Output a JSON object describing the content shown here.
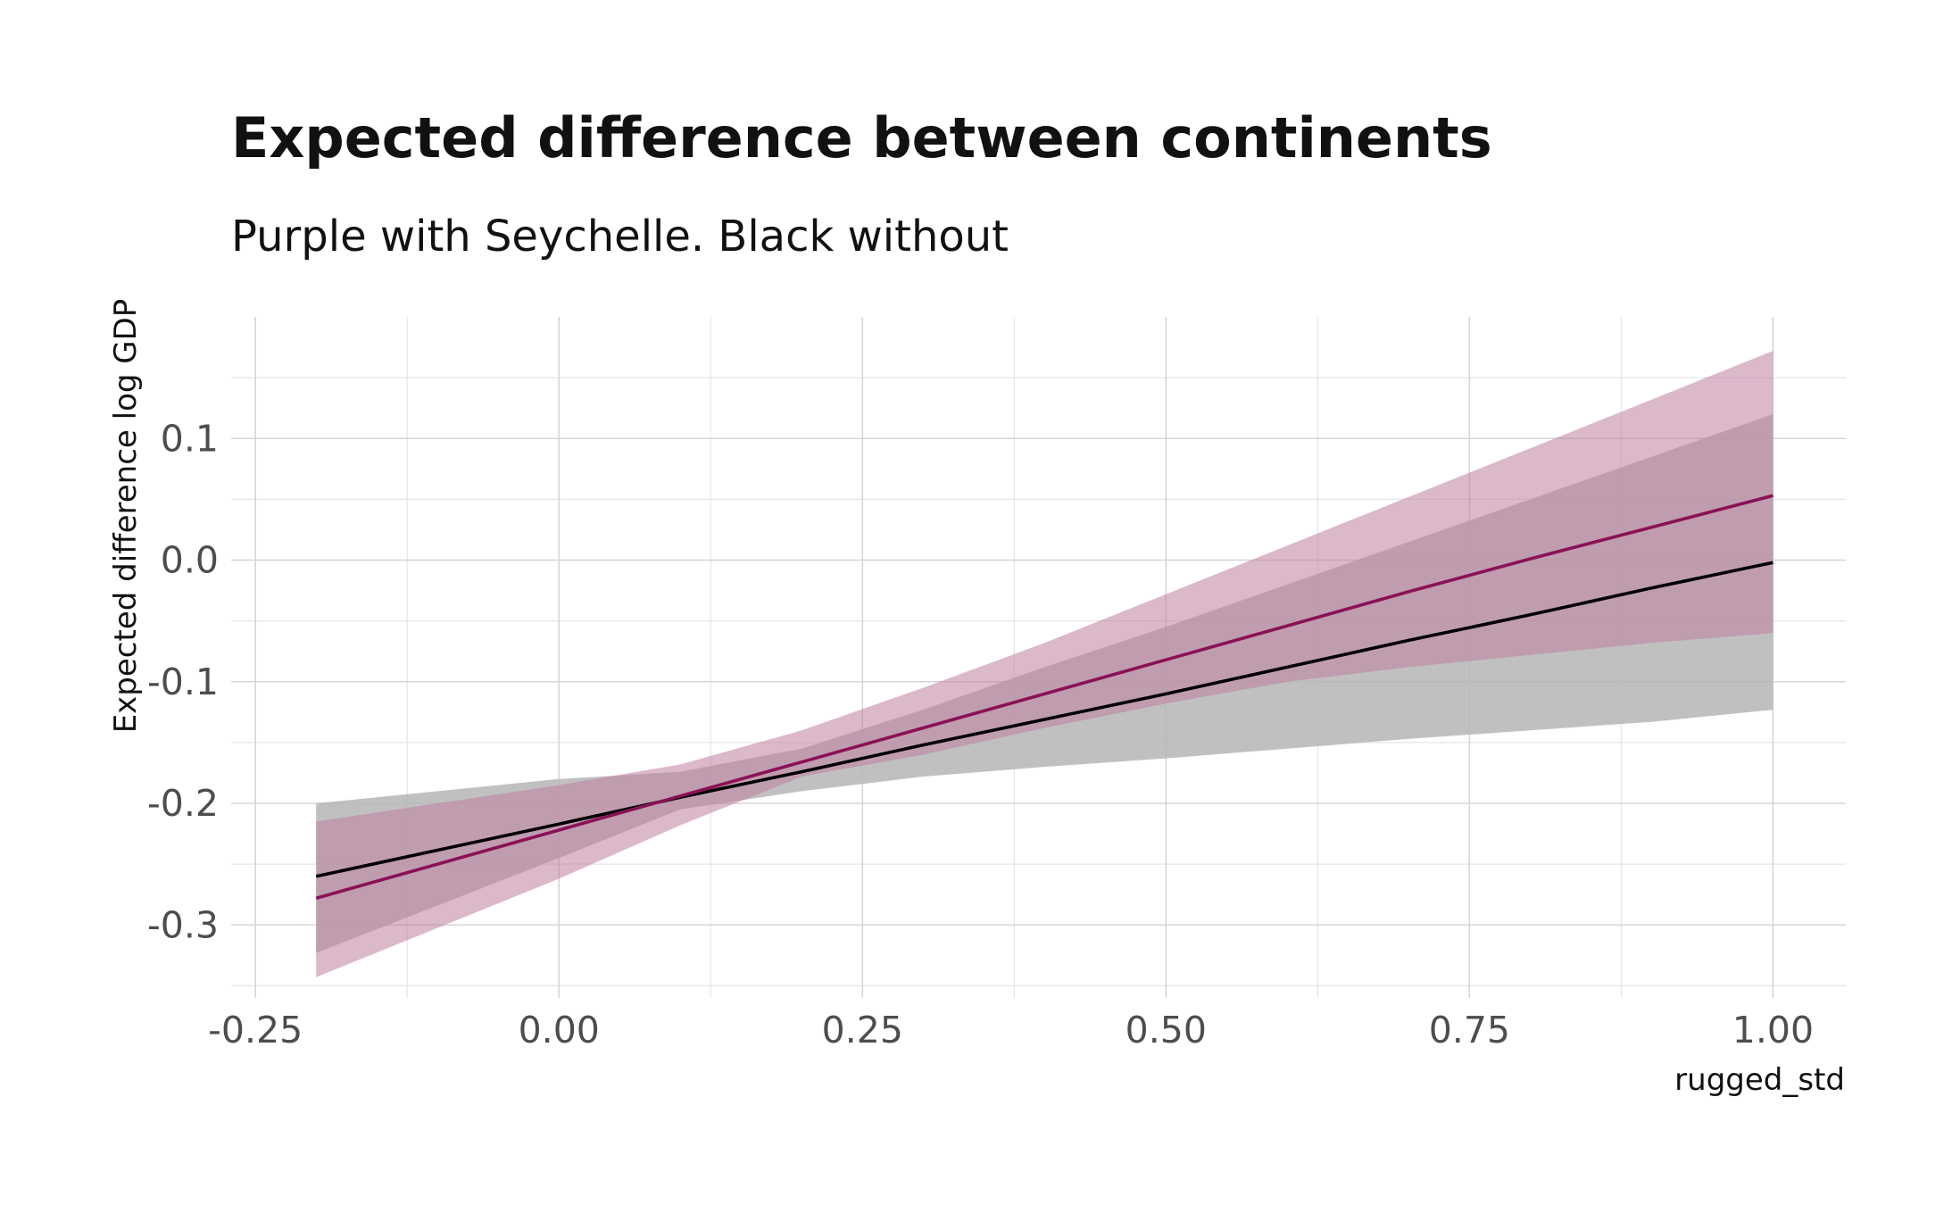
{
  "chart_data": {
    "type": "line",
    "title": "Expected difference between continents",
    "subtitle": "Purple with Seychelle. Black without",
    "xlabel": "rugged_std",
    "ylabel": "Expected difference log GDP",
    "xlim": [
      -0.27,
      1.06
    ],
    "ylim": [
      -0.36,
      0.2
    ],
    "x_ticks": [
      -0.25,
      0,
      0.25,
      0.5,
      0.75,
      1
    ],
    "x_tick_labels": [
      "-0.25",
      "0.00",
      "0.25",
      "0.50",
      "0.75",
      "1.00"
    ],
    "y_ticks": [
      -0.3,
      -0.2,
      -0.1,
      0,
      0.1
    ],
    "y_tick_labels": [
      "-0.3",
      "-0.2",
      "-0.1",
      "0.0",
      "0.1"
    ],
    "grid": true,
    "series": [
      {
        "color": "#000000",
        "band_color": "#b5b5b5",
        "band_opacity": 0.85,
        "x": [
          -0.2,
          0.0,
          0.1,
          0.2,
          0.3,
          0.4,
          0.5,
          0.6,
          0.7,
          0.8,
          0.9,
          1.0
        ],
        "mean": [
          -0.26,
          -0.217,
          -0.195,
          -0.174,
          -0.152,
          -0.131,
          -0.11,
          -0.088,
          -0.066,
          -0.045,
          -0.023,
          -0.002
        ],
        "lower": [
          -0.323,
          -0.245,
          -0.205,
          -0.19,
          -0.178,
          -0.17,
          -0.163,
          -0.155,
          -0.147,
          -0.14,
          -0.133,
          -0.123
        ],
        "upper": [
          -0.2,
          -0.18,
          -0.174,
          -0.155,
          -0.123,
          -0.088,
          -0.055,
          -0.02,
          0.015,
          0.05,
          0.085,
          0.12
        ]
      },
      {
        "color": "#8a1155",
        "band_color": "#c07ea0",
        "band_opacity": 0.55,
        "x": [
          -0.2,
          0.0,
          0.1,
          0.2,
          0.3,
          0.4,
          0.5,
          0.6,
          0.7,
          0.8,
          0.9,
          1.0
        ],
        "mean": [
          -0.278,
          -0.222,
          -0.194,
          -0.166,
          -0.138,
          -0.11,
          -0.082,
          -0.054,
          -0.026,
          0.001,
          0.027,
          0.053
        ],
        "lower": [
          -0.343,
          -0.262,
          -0.218,
          -0.178,
          -0.16,
          -0.138,
          -0.118,
          -0.1,
          -0.088,
          -0.078,
          -0.068,
          -0.06
        ],
        "upper": [
          -0.215,
          -0.185,
          -0.168,
          -0.14,
          -0.105,
          -0.068,
          -0.028,
          0.012,
          0.052,
          0.092,
          0.132,
          0.172
        ]
      }
    ]
  }
}
